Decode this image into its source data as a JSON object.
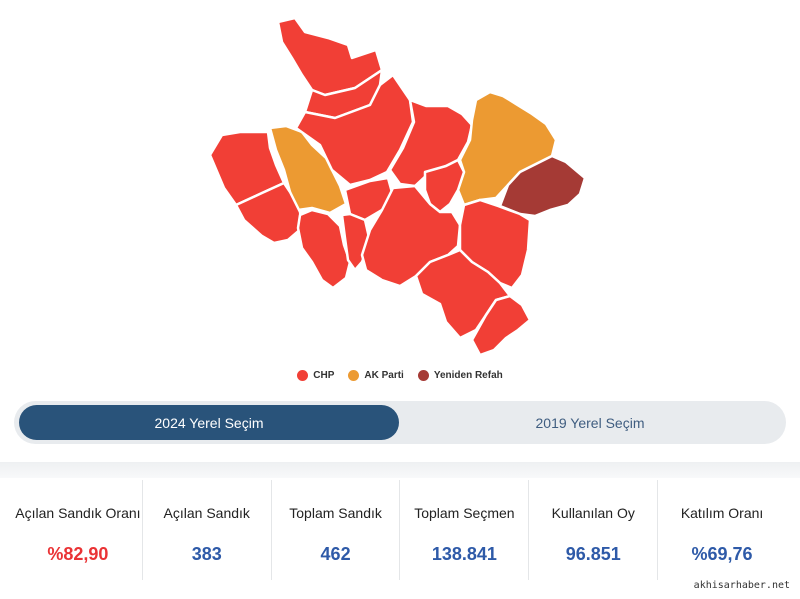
{
  "colors": {
    "chp": "#f13f36",
    "ak_parti": "#ec9a32",
    "yeniden_refah": "#a53a35"
  },
  "legend": [
    {
      "label": "CHP",
      "color": "#f13f36"
    },
    {
      "label": "AK Parti",
      "color": "#ec9a32"
    },
    {
      "label": "Yeniden Refah",
      "color": "#a53a35"
    }
  ],
  "tabs": {
    "active": "2024 Yerel Seçim",
    "inactive": "2019 Yerel Seçim"
  },
  "stats": [
    {
      "label": "Açılan Sandık Oranı",
      "value": "%82,90",
      "highlight": true
    },
    {
      "label": "Açılan Sandık",
      "value": "383"
    },
    {
      "label": "Toplam Sandık",
      "value": "462"
    },
    {
      "label": "Toplam Seçmen",
      "value": "138.841"
    },
    {
      "label": "Kullanılan Oy",
      "value": "96.851"
    },
    {
      "label": "Katılım Oranı",
      "value": "%69,76"
    }
  ],
  "watermark": "akhisarhaber.net"
}
